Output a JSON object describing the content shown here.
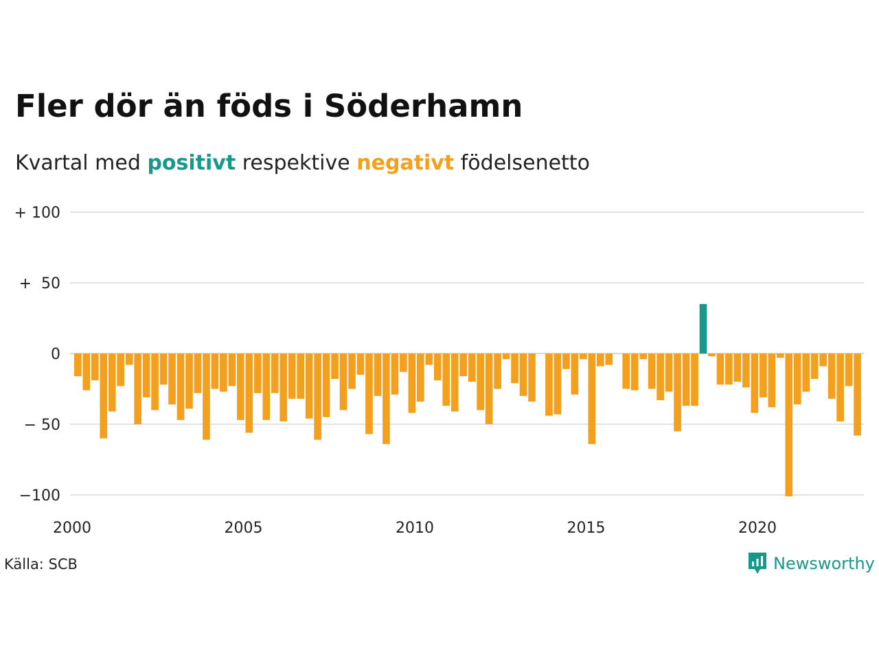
{
  "header": {
    "title": "Fler dör än föds i Söderhamn",
    "subtitle_prefix": "Kvartal med",
    "subtitle_positive": "positivt",
    "subtitle_middle": "respektive",
    "subtitle_negative": "negativt",
    "subtitle_suffix": "födelsenetto"
  },
  "footer": {
    "source": "Källa: SCB",
    "brand": "Newsworthy"
  },
  "colors": {
    "positive": "#16998b",
    "negative": "#f4a01f",
    "grid": "#e2e2e2",
    "text": "#111111"
  },
  "chart_data": {
    "type": "bar",
    "title": "Fler dör än föds i Söderhamn",
    "subtitle": "Kvartal med positivt respektive negativt födelsenetto",
    "xlabel": "",
    "ylabel": "",
    "x_start": "2000 Q1",
    "x_ticks": [
      2000,
      2005,
      2010,
      2015,
      2020
    ],
    "y_ticks": [
      {
        "value": 100,
        "label": "+ 100"
      },
      {
        "value": 50,
        "label": "+  50"
      },
      {
        "value": 0,
        "label": "0"
      },
      {
        "value": -50,
        "label": "− 50"
      },
      {
        "value": -100,
        "label": "−100"
      }
    ],
    "ylim": [
      -100,
      100
    ],
    "grid": true,
    "values": [
      -16,
      -26,
      -19,
      -60,
      -41,
      -23,
      -8,
      -50,
      -31,
      -40,
      -22,
      -36,
      -47,
      -39,
      -28,
      -61,
      -25,
      -27,
      -23,
      -47,
      -56,
      -28,
      -47,
      -28,
      -48,
      -32,
      -32,
      -46,
      -61,
      -45,
      -18,
      -40,
      -25,
      -15,
      -57,
      -30,
      -64,
      -29,
      -13,
      -42,
      -34,
      -8,
      -19,
      -37,
      -41,
      -16,
      -20,
      -40,
      -50,
      -25,
      -4,
      -21,
      -30,
      -34,
      0,
      -44,
      -43,
      -11,
      -29,
      -4,
      -64,
      -9,
      -8,
      0,
      -25,
      -26,
      -4,
      -25,
      -33,
      -27,
      -55,
      -37,
      -37,
      35,
      -2,
      -22,
      -22,
      -20,
      -24,
      -42,
      -31,
      -38,
      -3,
      -101,
      -36,
      -27,
      -18,
      -9,
      -32,
      -48,
      -23,
      -58
    ]
  }
}
